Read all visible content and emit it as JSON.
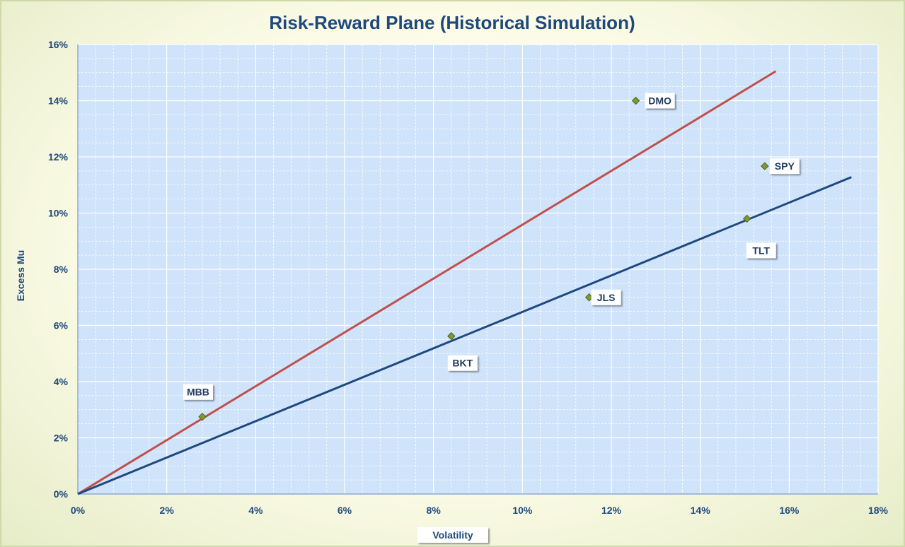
{
  "chart_data": {
    "type": "scatter",
    "title": "Risk-Reward Plane (Historical Simulation)",
    "xlabel": "Volatility",
    "ylabel": "Excess Mu",
    "xlim": [
      0,
      0.18
    ],
    "ylim": [
      0,
      0.16
    ],
    "x_ticks": [
      "0%",
      "2%",
      "4%",
      "6%",
      "8%",
      "10%",
      "12%",
      "14%",
      "16%",
      "18%"
    ],
    "y_ticks": [
      "0%",
      "2%",
      "4%",
      "6%",
      "8%",
      "10%",
      "12%",
      "14%",
      "16%"
    ],
    "grid": true,
    "points": [
      {
        "label": "MBB",
        "x": 0.028,
        "y": 0.0275
      },
      {
        "label": "BKT",
        "x": 0.084,
        "y": 0.0562
      },
      {
        "label": "JLS",
        "x": 0.115,
        "y": 0.07
      },
      {
        "label": "DMO",
        "x": 0.1255,
        "y": 0.14
      },
      {
        "label": "TLT",
        "x": 0.1505,
        "y": 0.098
      },
      {
        "label": "SPY",
        "x": 0.1545,
        "y": 0.1167
      }
    ],
    "lines": [
      {
        "color": "#c0504d",
        "x": [
          0,
          0.157
        ],
        "y": [
          0,
          0.1505
        ]
      },
      {
        "color": "#1f497d",
        "x": [
          0,
          0.174
        ],
        "y": [
          0,
          0.1128
        ]
      }
    ],
    "colors": {
      "plot_bg": "#cfe3fb",
      "marker": "#7f9a2a",
      "text": "#1f497d"
    }
  }
}
